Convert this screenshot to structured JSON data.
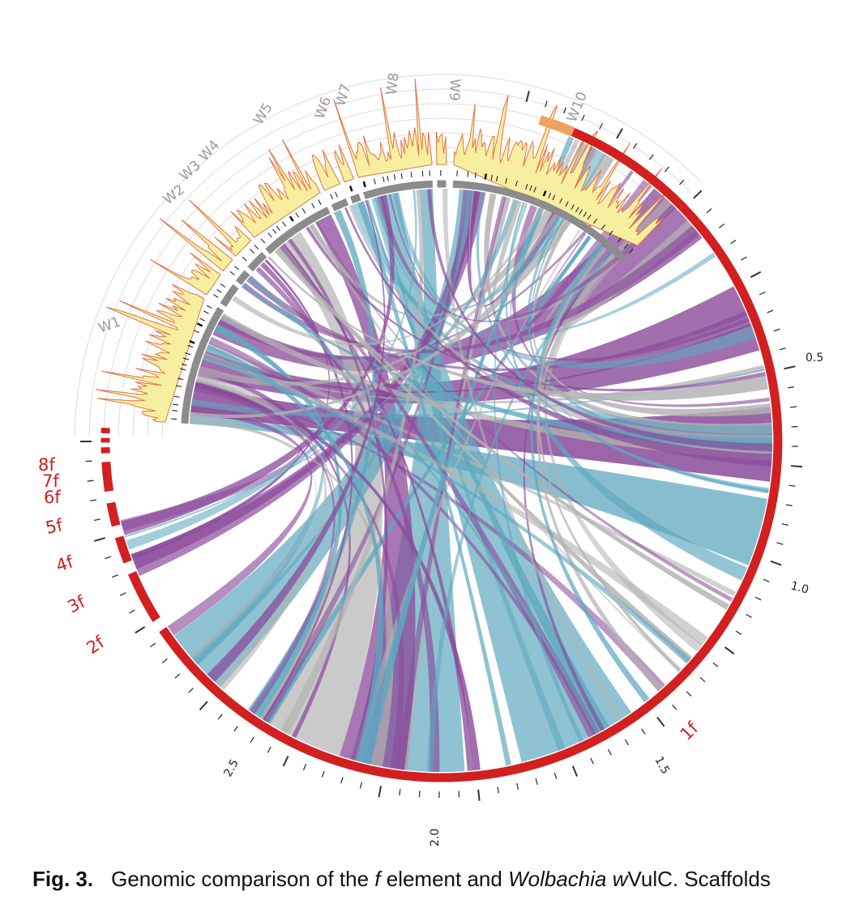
{
  "figure": {
    "title": "Genomic comparison of the f element and Wolbachia wVulC",
    "wolbachia_scaffolds": [
      "W1",
      "W2",
      "W3",
      "W4",
      "W5",
      "W6",
      "W7",
      "W8",
      "W9",
      "W10"
    ],
    "f_scaffolds": [
      "1f",
      "2f",
      "3f",
      "4f",
      "5f",
      "6f",
      "7f",
      "8f"
    ],
    "scale_labels": [
      "0.5",
      "1.0",
      "1.5",
      "2.0",
      "2.5"
    ],
    "link_colors": {
      "purple": "#8a4a9a",
      "teal": "#5fa8bf",
      "gray": "#b3b3b3"
    },
    "track_colors": {
      "f_scaffold": "#d21f1f",
      "f_start": "#f0a060",
      "wolbachia_scaffold": "#8c8c8c",
      "coverage_fill": "#f7efa0",
      "coverage_line": "#e0744a"
    }
  },
  "caption": {
    "fig_label": "Fig. 3.",
    "text_a": "Genomic comparison of the ",
    "f_italic": "f",
    "text_b": " element and ",
    "wolbachia_italic": "Wolbachia",
    "w_italic": "w",
    "text_c": "VulC. Scaffolds"
  }
}
